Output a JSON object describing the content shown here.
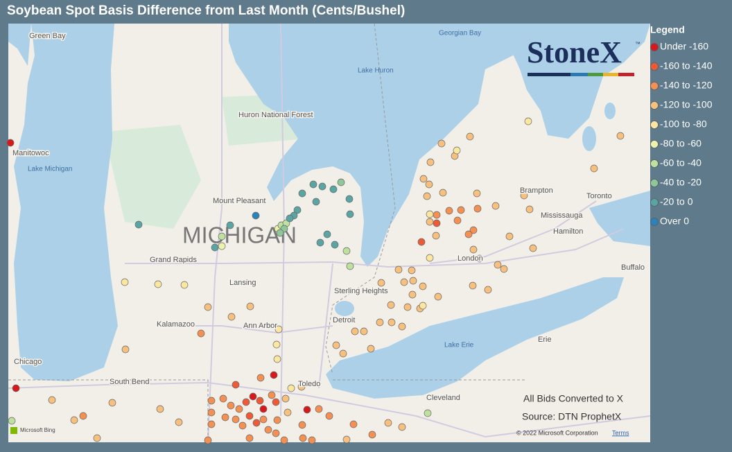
{
  "title": "Soybean Spot Basis Difference from Last Month (Cents/Bushel)",
  "legend": {
    "title": "Legend",
    "items": [
      {
        "label": "Under -160",
        "color": "#d7191c"
      },
      {
        "label": "-160 to -140",
        "color": "#ee5a36"
      },
      {
        "label": "-140 to -120",
        "color": "#f59053"
      },
      {
        "label": "-120 to -100",
        "color": "#f8c07e"
      },
      {
        "label": "-100 to -80",
        "color": "#fce7a0"
      },
      {
        "label": "-80 to -60",
        "color": "#ebf3ad"
      },
      {
        "label": "-60 to -40",
        "color": "#bfe1a0"
      },
      {
        "label": "-40 to -20",
        "color": "#8fc79a"
      },
      {
        "label": "-20 to 0",
        "color": "#5aa5a4"
      },
      {
        "label": "Over 0",
        "color": "#2b83ba"
      }
    ]
  },
  "map": {
    "state_label": "MICHIGAN",
    "labels": [
      "Green Bay",
      "Manitowoc",
      "Lake Michigan",
      "Georgian Bay",
      "Lake Huron",
      "Huron National Forest",
      "Mount Pleasant",
      "Grand Rapids",
      "Lansing",
      "Kalamazoo",
      "Ann Arbor",
      "Sterling Heights",
      "Detroit",
      "Chicago",
      "South Bend",
      "Toledo",
      "Lake Erie",
      "Cleveland",
      "Erie",
      "London",
      "Brampton",
      "Toronto",
      "Mississauga",
      "Hamilton",
      "Buffalo"
    ]
  },
  "logo": {
    "name": "StoneX",
    "mark": "™"
  },
  "notes": [
    "All Bids Converted to X",
    "Source: DTN ProphetX"
  ],
  "attribution": {
    "provider": "Microsoft Bing",
    "copyright": "© 2022 Microsoft Corporation",
    "terms": "Terms"
  }
}
